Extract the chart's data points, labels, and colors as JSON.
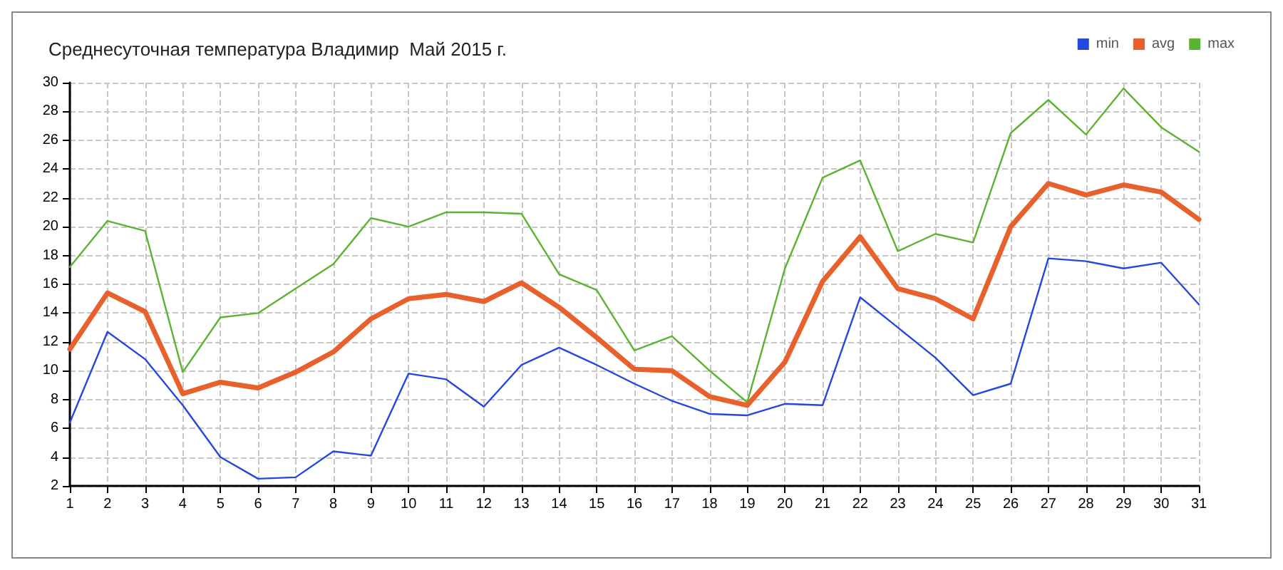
{
  "chart_data": {
    "type": "line",
    "title": "Среднесуточная температура Владимир  Май 2015 г.",
    "x": [
      1,
      2,
      3,
      4,
      5,
      6,
      7,
      8,
      9,
      10,
      11,
      12,
      13,
      14,
      15,
      16,
      17,
      18,
      19,
      20,
      21,
      22,
      23,
      24,
      25,
      26,
      27,
      28,
      29,
      30,
      31
    ],
    "series": [
      {
        "name": "min",
        "color": "#2447e0",
        "values": [
          6.4,
          12.7,
          10.8,
          7.6,
          4.0,
          2.5,
          2.6,
          4.4,
          4.1,
          9.8,
          9.4,
          7.5,
          10.4,
          11.6,
          10.4,
          9.1,
          7.9,
          7.0,
          6.9,
          7.7,
          7.6,
          15.1,
          13.0,
          10.9,
          8.3,
          9.1,
          17.8,
          17.6,
          17.1,
          17.5,
          14.6
        ]
      },
      {
        "name": "avg",
        "color": "#e8602c",
        "values": [
          11.5,
          15.4,
          14.1,
          8.4,
          9.2,
          8.8,
          9.9,
          11.3,
          13.6,
          15.0,
          15.3,
          14.8,
          16.1,
          14.4,
          12.3,
          10.1,
          10.0,
          8.2,
          7.6,
          10.6,
          16.2,
          19.3,
          15.7,
          15.0,
          13.6,
          20.0,
          23.0,
          22.2,
          22.9,
          22.4,
          20.5
        ]
      },
      {
        "name": "max",
        "color": "#5ab430",
        "values": [
          17.2,
          20.4,
          19.7,
          9.9,
          13.7,
          14.0,
          15.7,
          17.4,
          20.6,
          20.0,
          21.0,
          21.0,
          20.9,
          16.7,
          15.6,
          11.4,
          12.4,
          10.0,
          7.8,
          17.1,
          23.4,
          24.6,
          18.3,
          19.5,
          18.9,
          26.5,
          28.8,
          26.4,
          29.6,
          26.9,
          25.2
        ]
      }
    ],
    "xlim": [
      1,
      31
    ],
    "xticks": [
      1,
      2,
      3,
      4,
      5,
      6,
      7,
      8,
      9,
      10,
      11,
      12,
      13,
      14,
      15,
      16,
      17,
      18,
      19,
      20,
      21,
      22,
      23,
      24,
      25,
      26,
      27,
      28,
      29,
      30,
      31
    ],
    "ylim": [
      2,
      30
    ],
    "yticks": [
      2,
      4,
      6,
      8,
      10,
      12,
      14,
      16,
      18,
      20,
      22,
      24,
      26,
      28,
      30
    ],
    "grid": true,
    "legend": "top right",
    "marker": "none",
    "line_style": "solid"
  }
}
